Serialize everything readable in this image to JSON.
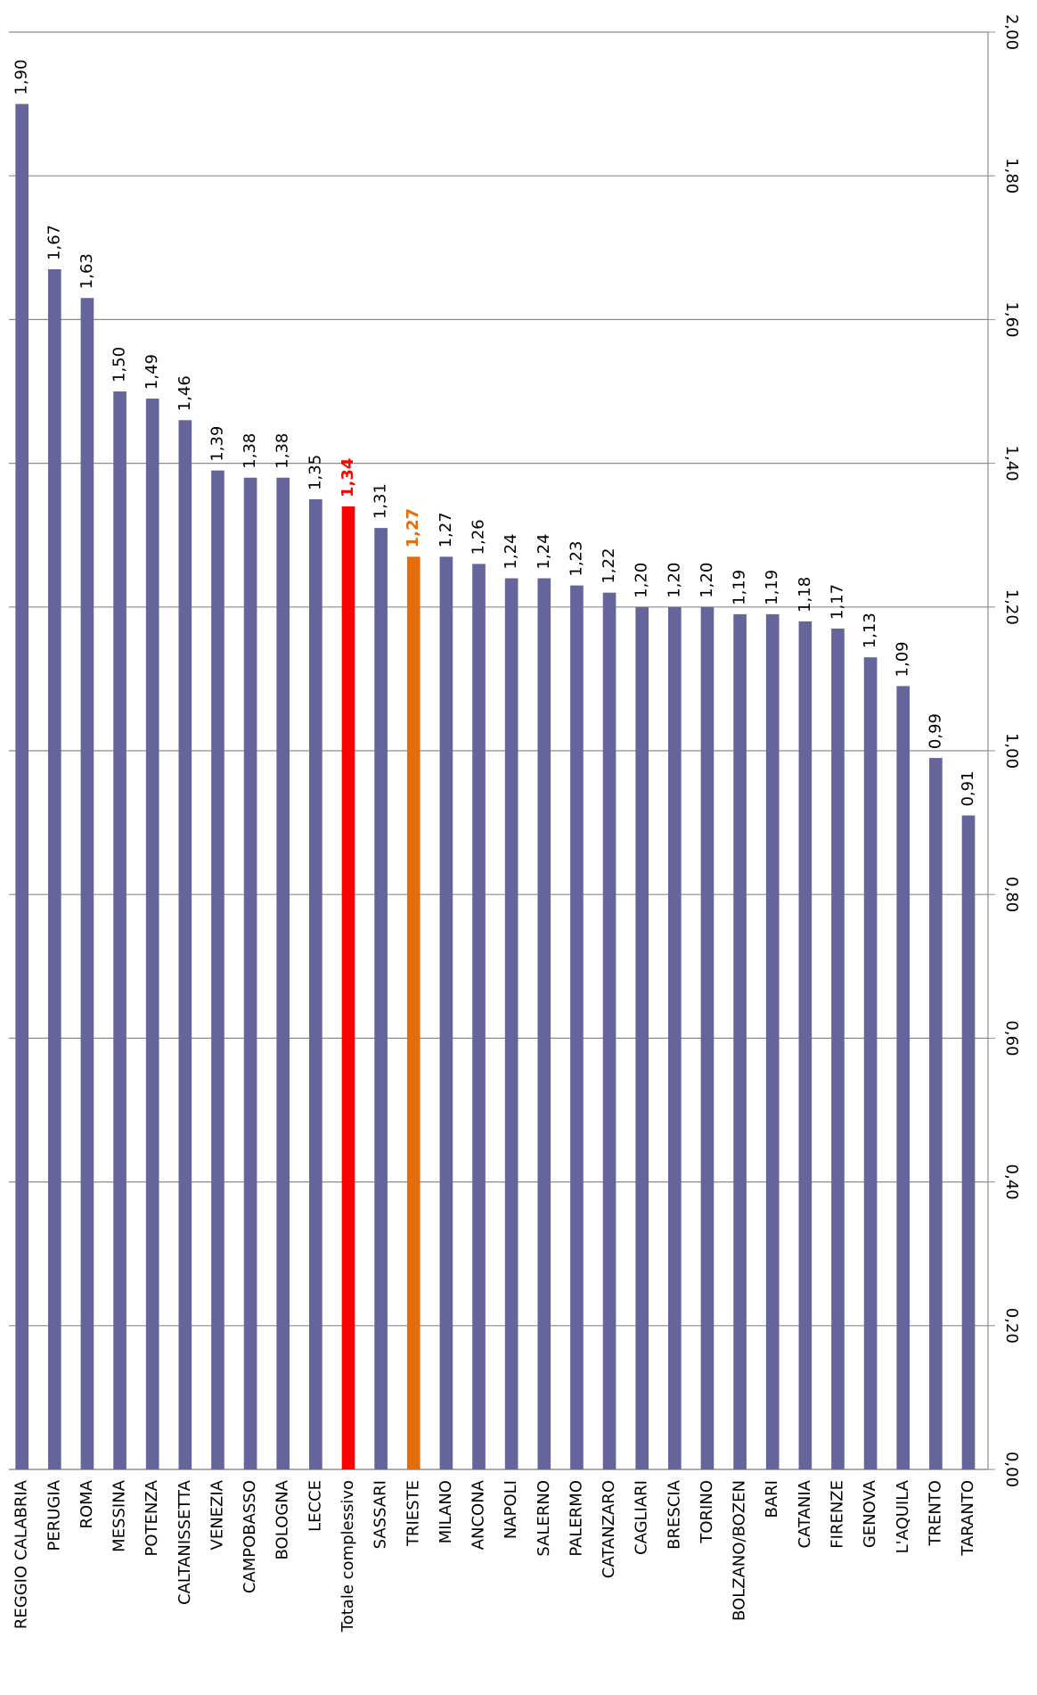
{
  "chart_data": {
    "type": "bar",
    "orientation": "rotated",
    "categories": [
      "REGGIO CALABRIA",
      "PERUGIA",
      "ROMA",
      "MESSINA",
      "POTENZA",
      "CALTANISSETTA",
      "VENEZIA",
      "CAMPOBASSO",
      "BOLOGNA",
      "LECCE",
      "Totale complessivo",
      "SASSARI",
      "TRIESTE",
      "MILANO",
      "ANCONA",
      "NAPOLI",
      "SALERNO",
      "PALERMO",
      "CATANZARO",
      "CAGLIARI",
      "BRESCIA",
      "TORINO",
      "BOLZANO/BOZEN",
      "BARI",
      "CATANIA",
      "FIRENZE",
      "GENOVA",
      "L'AQUILA",
      "TRENTO",
      "TARANTO"
    ],
    "values": [
      1.9,
      1.67,
      1.63,
      1.5,
      1.49,
      1.46,
      1.39,
      1.38,
      1.38,
      1.35,
      1.34,
      1.31,
      1.27,
      1.27,
      1.26,
      1.24,
      1.24,
      1.23,
      1.22,
      1.2,
      1.2,
      1.2,
      1.19,
      1.19,
      1.18,
      1.17,
      1.13,
      1.09,
      0.99,
      0.91
    ],
    "value_labels": [
      "1,90",
      "1,67",
      "1,63",
      "1,50",
      "1,49",
      "1,46",
      "1,39",
      "1,38",
      "1,38",
      "1,35",
      "1,34",
      "1,31",
      "1,27",
      "1,27",
      "1,26",
      "1,24",
      "1,24",
      "1,23",
      "1,22",
      "1,20",
      "1,20",
      "1,20",
      "1,19",
      "1,19",
      "1,18",
      "1,17",
      "1,13",
      "1,09",
      "0,99",
      "0,91"
    ],
    "color": "#65659b",
    "bar_colors": [
      "#65659b",
      "#65659b",
      "#65659b",
      "#65659b",
      "#65659b",
      "#65659b",
      "#65659b",
      "#65659b",
      "#65659b",
      "#65659b",
      "#ff0000",
      "#65659b",
      "#e46c0a",
      "#65659b",
      "#65659b",
      "#65659b",
      "#65659b",
      "#65659b",
      "#65659b",
      "#65659b",
      "#65659b",
      "#65659b",
      "#65659b",
      "#65659b",
      "#65659b",
      "#65659b",
      "#65659b",
      "#65659b",
      "#65659b",
      "#65659b"
    ],
    "ylim": [
      0,
      2
    ],
    "yticks": [
      {
        "value": 0,
        "label": "0,00"
      },
      {
        "value": 0.2,
        "label": "0,20"
      },
      {
        "value": 0.4,
        "label": "0,40"
      },
      {
        "value": 0.6,
        "label": "0,60"
      },
      {
        "value": 0.8,
        "label": "0,80"
      },
      {
        "value": 1,
        "label": "1,00"
      },
      {
        "value": 1.2,
        "label": "1,20"
      },
      {
        "value": 1.4,
        "label": "1,40"
      },
      {
        "value": 1.6,
        "label": "1,60"
      },
      {
        "value": 1.8,
        "label": "1,80"
      },
      {
        "value": 2,
        "label": "2,00"
      }
    ],
    "grid": true
  }
}
